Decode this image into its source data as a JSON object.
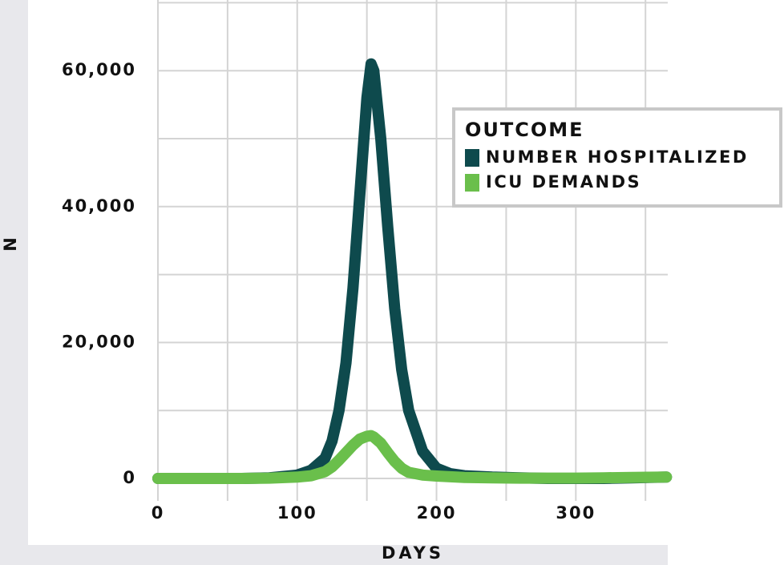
{
  "chart_data": {
    "type": "line",
    "x_label": "DAYS",
    "y_label": "N",
    "x": [
      0,
      20,
      40,
      60,
      80,
      100,
      110,
      120,
      125,
      130,
      135,
      140,
      145,
      150,
      153,
      155,
      160,
      165,
      170,
      175,
      180,
      190,
      200,
      210,
      220,
      240,
      260,
      280,
      300,
      320,
      340,
      365
    ],
    "series": [
      {
        "name": "NUMBER HOSPITALIZED",
        "color": "#0e4a4d",
        "values": [
          0,
          0,
          0,
          0,
          100,
          500,
          1200,
          3000,
          5500,
          10000,
          17000,
          28000,
          42000,
          56000,
          61000,
          60000,
          50000,
          37000,
          25000,
          16000,
          10000,
          4000,
          1500,
          700,
          400,
          200,
          100,
          0,
          0,
          0,
          100,
          200
        ]
      },
      {
        "name": "ICU DEMANDS",
        "color": "#6abf4b",
        "values": [
          0,
          0,
          0,
          0,
          50,
          200,
          400,
          1000,
          1700,
          2700,
          3800,
          4900,
          5800,
          6200,
          6300,
          6100,
          5200,
          3800,
          2500,
          1500,
          900,
          500,
          350,
          250,
          150,
          80,
          50,
          50,
          50,
          100,
          150,
          200
        ]
      }
    ],
    "legend_title": "OUTCOME",
    "xlim": [
      0,
      366
    ],
    "ylim": [
      -3300,
      70400
    ],
    "xticks": [
      0,
      100,
      200,
      300
    ],
    "yticks": [
      0,
      {
        "value": 20000,
        "label": "20,000"
      },
      {
        "value": 40000,
        "label": "40,000"
      },
      {
        "value": 60000,
        "label": "60,000"
      }
    ],
    "x_minor_grid": [
      50,
      150,
      250,
      350
    ],
    "y_minor_grid": [
      10000,
      30000,
      50000,
      70000
    ],
    "grid": true,
    "legend_position": "upper right"
  }
}
